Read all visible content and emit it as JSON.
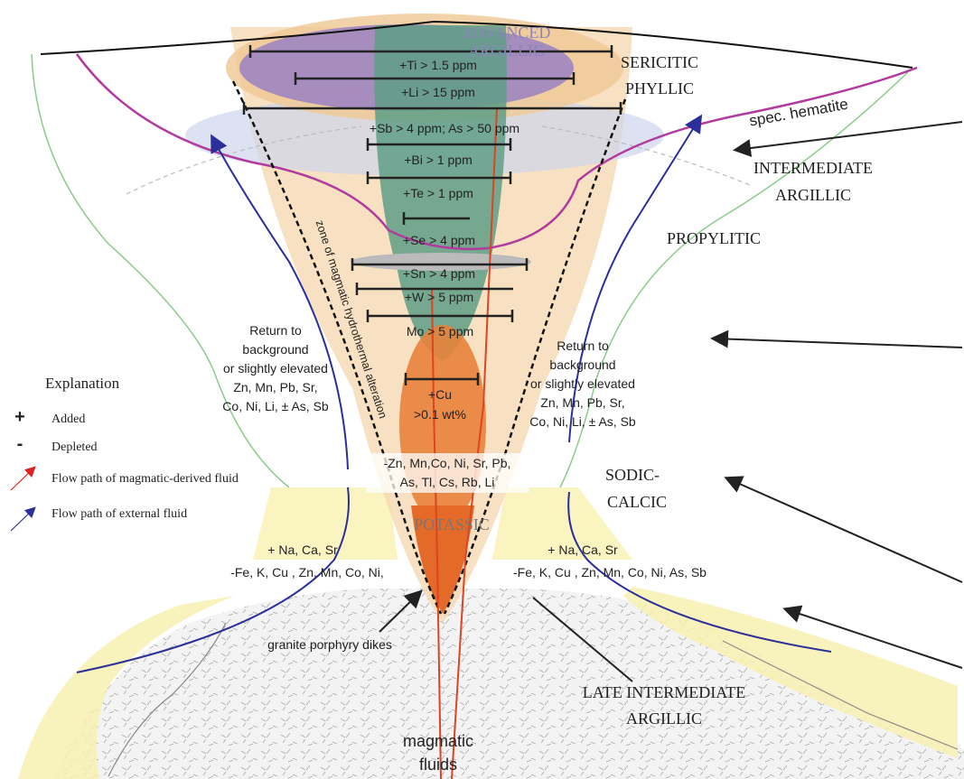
{
  "zones": {
    "advanced_argillic": [
      "ADVANCED",
      "ARGILLIC"
    ],
    "sericitic_phyllic": [
      "SERICITIC",
      "PHYLLIC"
    ],
    "spec_hematite": "spec. hematite",
    "intermediate_argillic": [
      "INTERMEDIATE",
      "ARGILLIC"
    ],
    "propylitic": "PROPYLITIC",
    "sodic_calcic": [
      "SODIC-",
      "CALCIC"
    ],
    "potassic": "POTASSIC",
    "late_intermediate_argillic": [
      "LATE INTERMEDIATE",
      "ARGILLIC"
    ]
  },
  "thresholds": [
    "+Ti > 1.5 ppm",
    "+Li > 15 ppm",
    "+Sb > 4 ppm; As > 50 ppm",
    "+Bi > 1 ppm",
    "+Te > 1 ppm",
    "+Se > 4 ppm",
    "+Sn > 4 ppm",
    "+W > 5 ppm",
    "Mo > 5 ppm"
  ],
  "cu": [
    "+Cu",
    ">0.1 wt%"
  ],
  "zone_label": "zone of magmatic hydrothermal alteration",
  "return_left": [
    "Return to",
    "background",
    "or slightly elevated",
    "Zn, Mn, Pb, Sr,",
    "Co, Ni, Li, ± As, Sb"
  ],
  "return_right": [
    "Return to",
    "background",
    "or slightly elevated",
    "Zn, Mn, Pb, Sr,",
    "Co, Ni, Li, ± As, Sb"
  ],
  "depleted_center": [
    "-Zn, Mn,Co, Ni, Sr, Pb,",
    "As, Tl, Cs, Rb, Li"
  ],
  "sodic_left": [
    "+ Na, Ca, Sr",
    "-Fe, K, Cu , Zn, Mn, Co, Ni,"
  ],
  "sodic_right": [
    "+ Na, Ca, Sr",
    "-Fe, K, Cu , Zn, Mn, Co, Ni, As, Sb"
  ],
  "dikes": "granite porphyry dikes",
  "fluids": [
    "magmatic",
    "fluids"
  ],
  "legend": {
    "title": "Explanation",
    "items": [
      {
        "symbol": "+",
        "label": "Added"
      },
      {
        "symbol": "-",
        "label": "Depleted"
      },
      {
        "label": "Flow path of magmatic-derived fluid"
      },
      {
        "label": "Flow path of external fluid"
      }
    ]
  }
}
